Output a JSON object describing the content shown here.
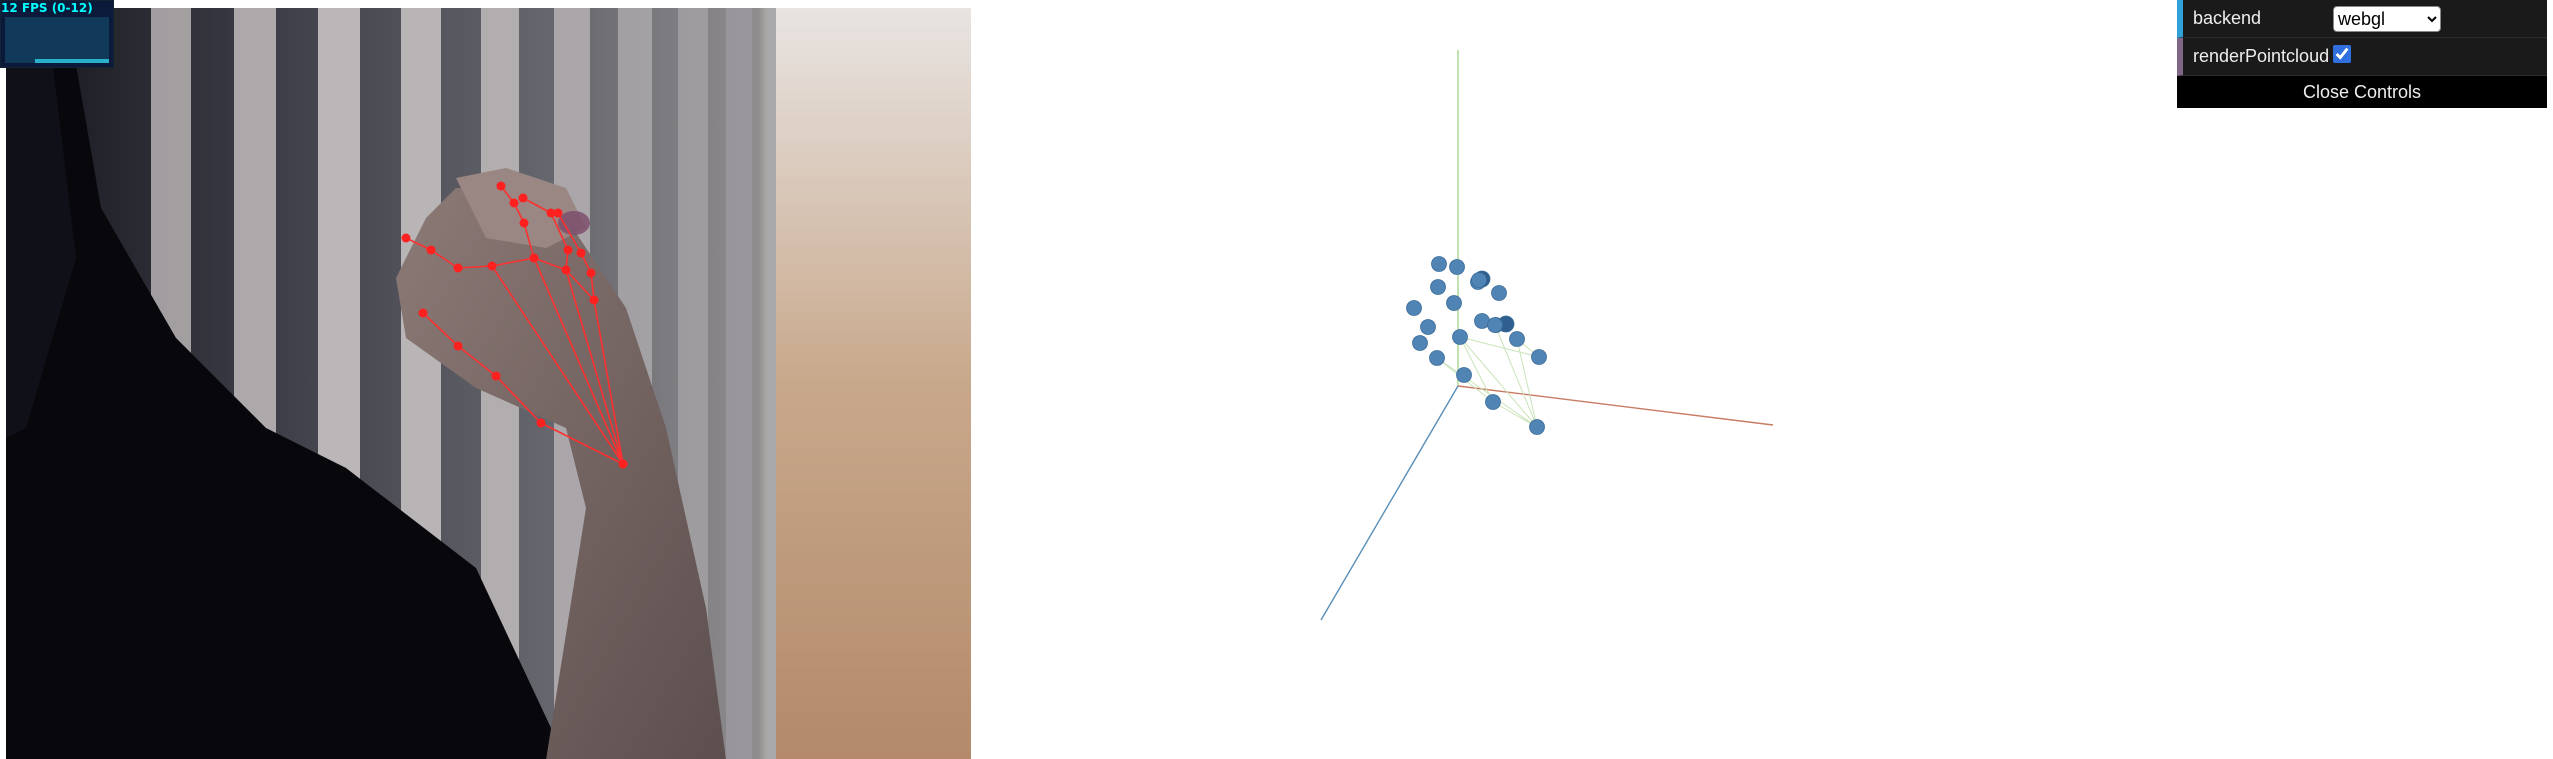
{
  "stats": {
    "fps_text": "12 FPS (0-12)"
  },
  "controls": {
    "backend": {
      "label": "backend",
      "selected": "webgl",
      "options": [
        "webgl"
      ]
    },
    "render_pointcloud": {
      "label": "renderPointcloud",
      "checked": true
    },
    "close_label": "Close Controls"
  },
  "colors": {
    "keypoint": "#ff2020",
    "skeleton": "#ff3030",
    "point3d": "#4f84b4",
    "axis_x": "#c97a62",
    "axis_y": "#a6d58e",
    "axis_z": "#5a8fb8"
  }
}
